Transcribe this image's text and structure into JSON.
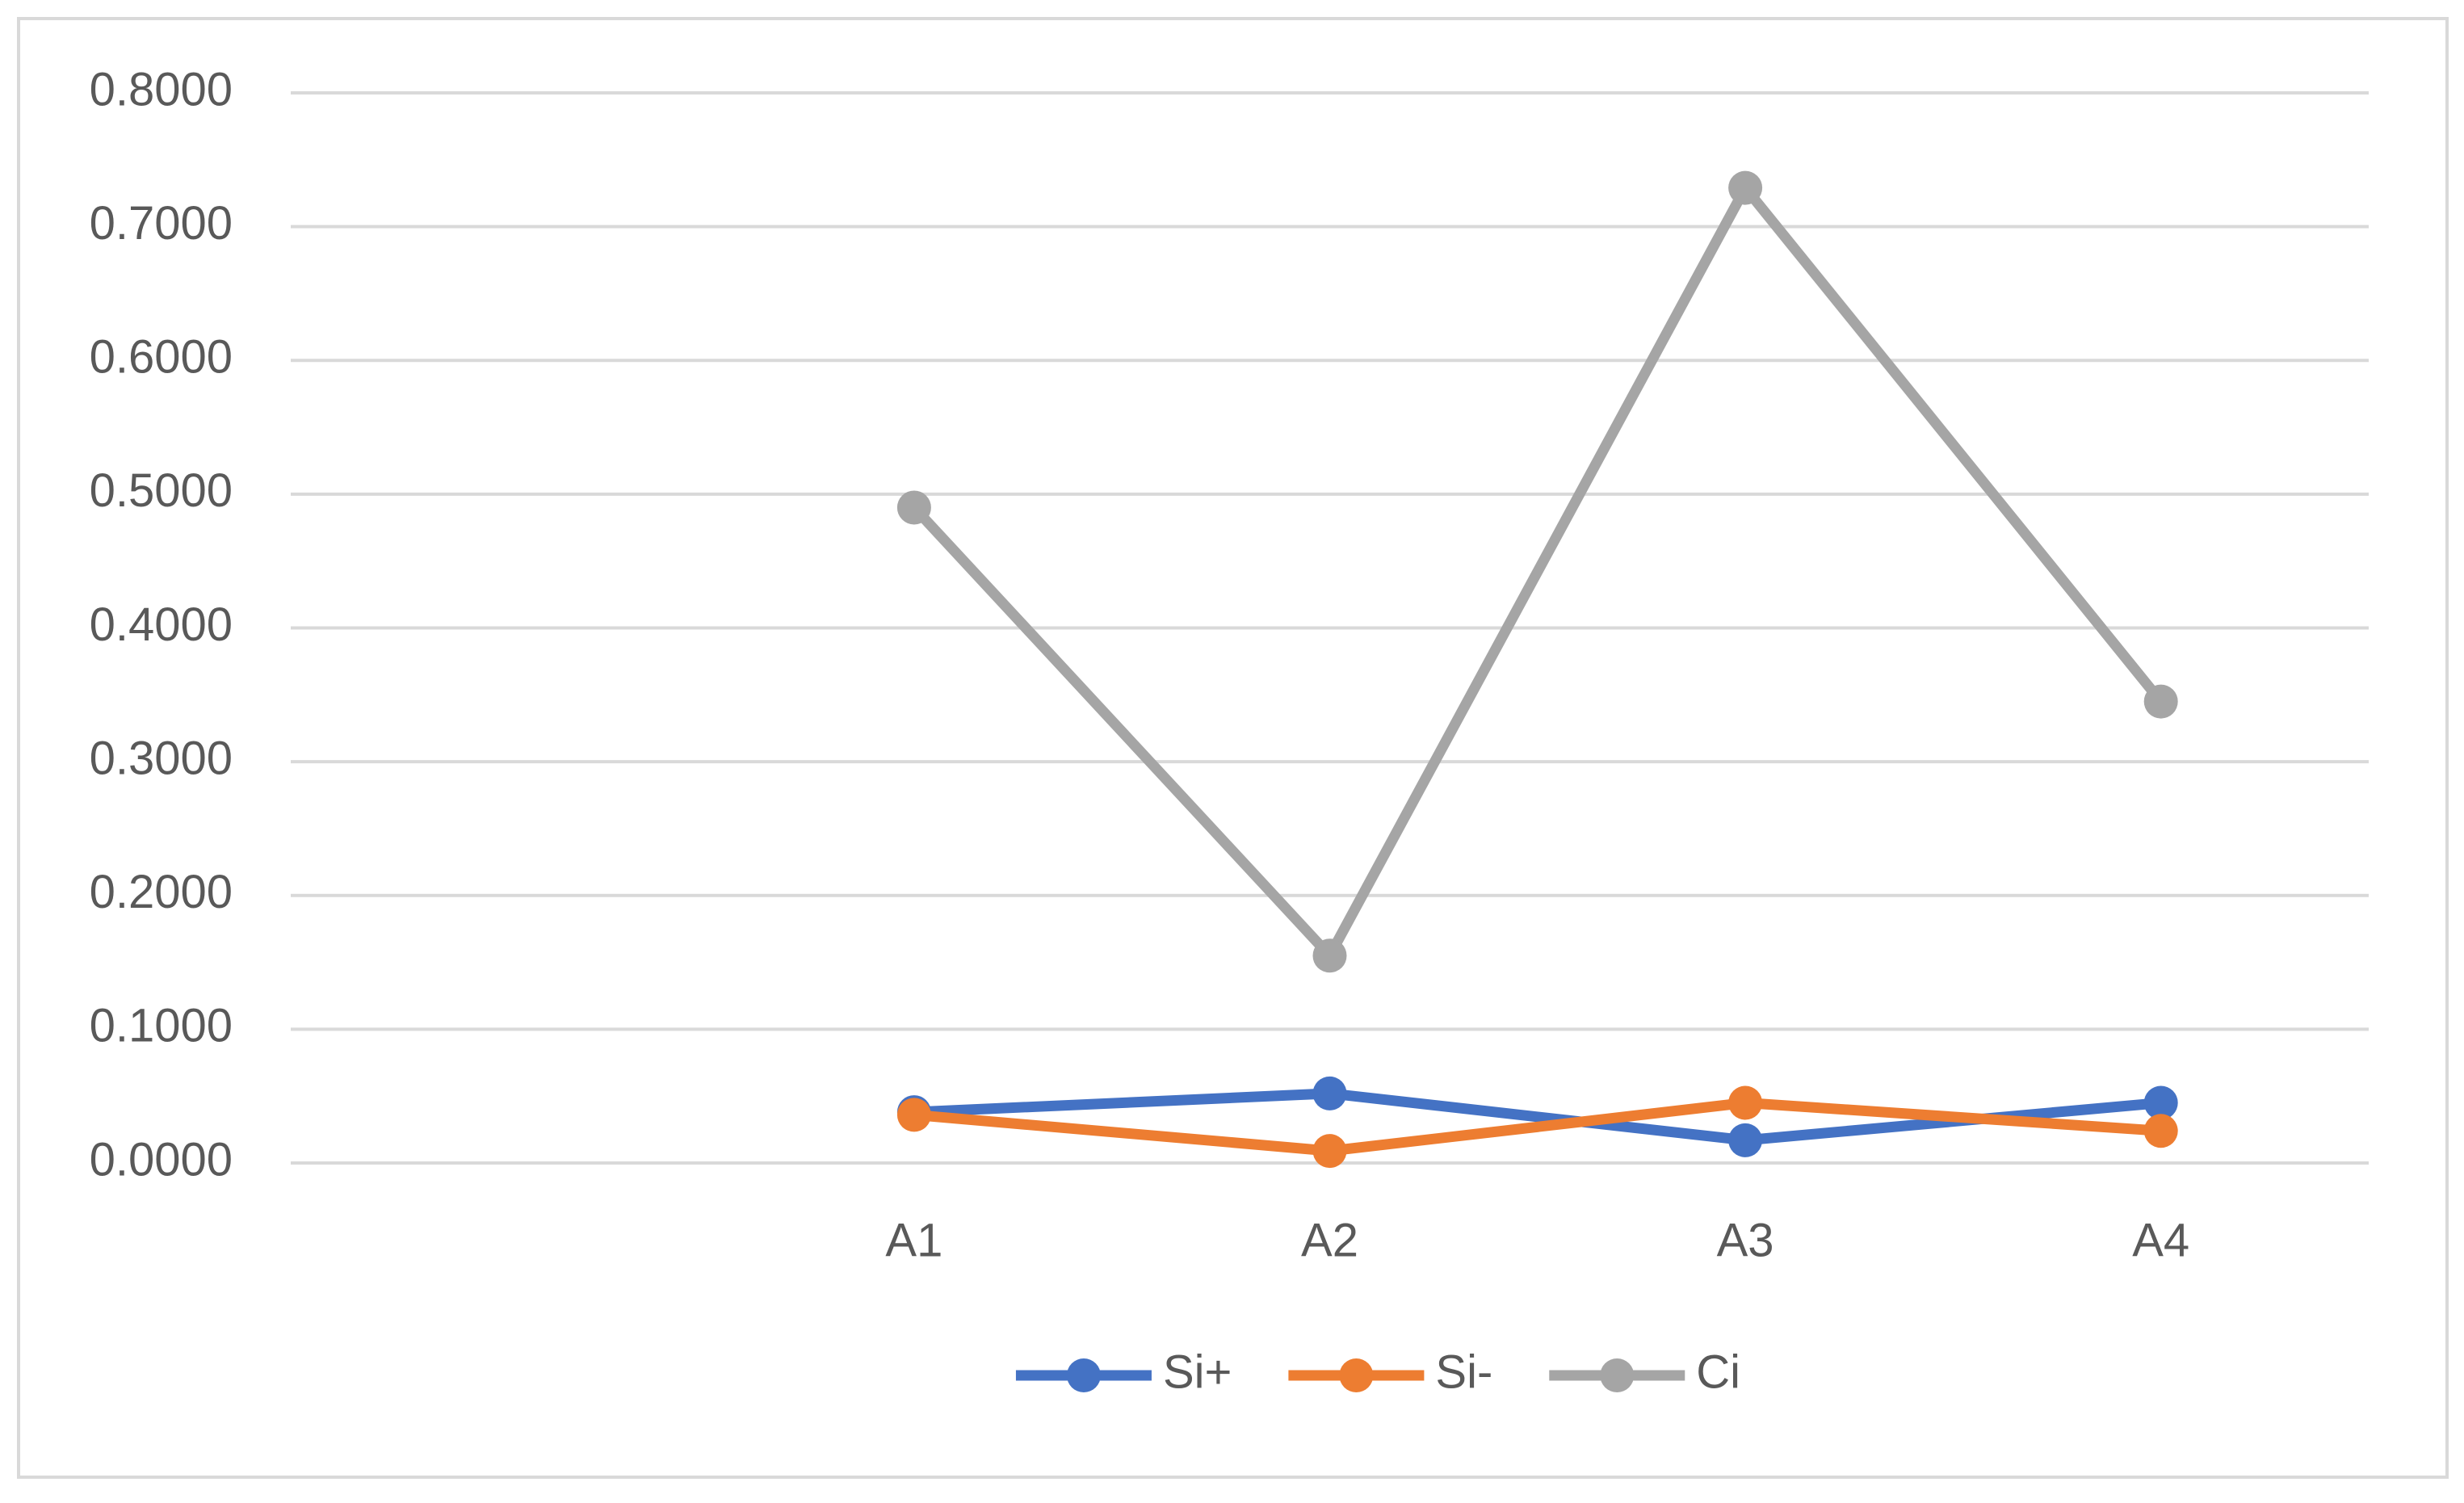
{
  "chart_data": {
    "type": "line",
    "categories": [
      null,
      "A1",
      "A2",
      "A3",
      "A4"
    ],
    "series": [
      {
        "name": "Si+",
        "color": "#4472c4",
        "values": [
          null,
          0.038,
          0.052,
          0.017,
          0.045
        ]
      },
      {
        "name": "Si-",
        "color": "#ed7d31",
        "values": [
          null,
          0.036,
          0.009,
          0.045,
          0.024
        ]
      },
      {
        "name": "Ci",
        "color": "#a5a5a5",
        "values": [
          null,
          0.49,
          0.155,
          0.729,
          0.345
        ]
      }
    ],
    "ylim": [
      0,
      0.8
    ],
    "yticks": [
      {
        "value": 0,
        "label": "0.0000"
      },
      {
        "value": 0.1,
        "label": "0.1000"
      },
      {
        "value": 0.2,
        "label": "0.2000"
      },
      {
        "value": 0.3,
        "label": "0.3000"
      },
      {
        "value": 0.4,
        "label": "0.4000"
      },
      {
        "value": 0.5,
        "label": "0.5000"
      },
      {
        "value": 0.6,
        "label": "0.6000"
      },
      {
        "value": 0.7,
        "label": "0.7000"
      },
      {
        "value": 0.8,
        "label": "0.8000"
      }
    ],
    "grid": true,
    "legend": "bottom"
  }
}
